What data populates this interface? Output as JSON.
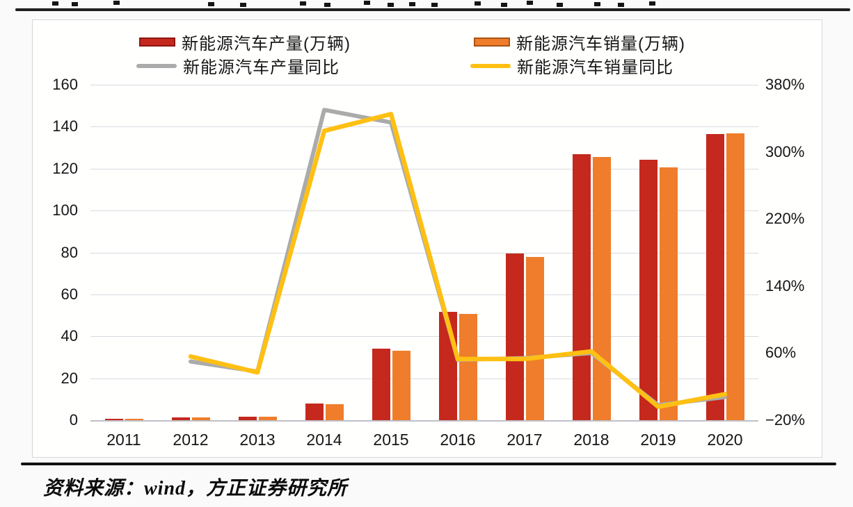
{
  "page": {
    "source_note": "资料来源：wind，方正证券研究所"
  },
  "chart_data": {
    "type": "bar-line-combo",
    "title": "",
    "categories": [
      "2011",
      "2012",
      "2013",
      "2014",
      "2015",
      "2016",
      "2017",
      "2018",
      "2019",
      "2020"
    ],
    "series": [
      {
        "name": "新能源汽车产量(万辆)",
        "type": "bar",
        "axis": "left",
        "color": "#c5281d",
        "swatch_border": "#8f1710",
        "values": [
          0.8,
          1.3,
          1.8,
          7.9,
          34.0,
          51.7,
          79.4,
          127.0,
          124.2,
          136.6
        ]
      },
      {
        "name": "新能源汽车销量(万辆)",
        "type": "bar",
        "axis": "left",
        "color": "#ef7d2b",
        "swatch_border": "#a85314",
        "values": [
          0.8,
          1.3,
          1.8,
          7.5,
          33.1,
          50.7,
          77.7,
          125.6,
          120.6,
          136.7
        ]
      },
      {
        "name": "新能源汽车产量同比",
        "type": "line",
        "axis": "right",
        "color": "#ababab",
        "values": [
          null,
          50,
          38,
          350,
          335,
          52,
          54,
          60,
          -2,
          7.5
        ]
      },
      {
        "name": "新能源汽车销量同比",
        "type": "line",
        "axis": "right",
        "color": "#ffc013",
        "values": [
          null,
          56,
          37,
          325,
          345,
          53,
          53,
          62,
          -4,
          11
        ]
      }
    ],
    "left_axis": {
      "min": 0,
      "max": 160,
      "step": 20,
      "ticks": [
        0,
        20,
        40,
        60,
        80,
        100,
        120,
        140,
        160
      ]
    },
    "right_axis": {
      "min": -20,
      "max": 380,
      "step": 80,
      "tick_values": [
        -20,
        60,
        140,
        220,
        300,
        380
      ],
      "suffix": "%"
    },
    "grid": true,
    "legend_position": "top"
  }
}
